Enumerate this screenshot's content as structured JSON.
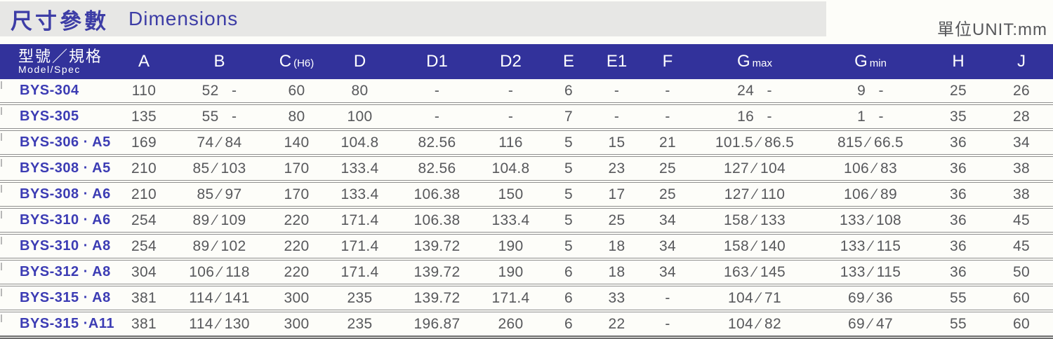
{
  "page": {
    "title_zh": "尺寸參數",
    "title_en": "Dimensions",
    "unit_label": "單位UNIT:mm"
  },
  "table": {
    "header": {
      "model_zh": "型號／規格",
      "model_en": "Model/Spec"
    },
    "columns": [
      {
        "key": "a",
        "main": "A",
        "sub": ""
      },
      {
        "key": "b",
        "main": "B",
        "sub": ""
      },
      {
        "key": "c",
        "main": "C",
        "sub": "(H6)"
      },
      {
        "key": "d",
        "main": "D",
        "sub": ""
      },
      {
        "key": "d1",
        "main": "D1",
        "sub": ""
      },
      {
        "key": "d2",
        "main": "D2",
        "sub": ""
      },
      {
        "key": "e",
        "main": "E",
        "sub": ""
      },
      {
        "key": "e1",
        "main": "E1",
        "sub": ""
      },
      {
        "key": "f",
        "main": "F",
        "sub": ""
      },
      {
        "key": "gmax",
        "main": "G",
        "sub": "max"
      },
      {
        "key": "gmin",
        "main": "G",
        "sub": "min"
      },
      {
        "key": "h",
        "main": "H",
        "sub": ""
      },
      {
        "key": "j",
        "main": "J",
        "sub": ""
      }
    ],
    "rows": [
      {
        "model": "BYS-304",
        "a": "110",
        "b": "52   -",
        "c": "60",
        "d": "80",
        "d1": "-",
        "d2": "-",
        "e": "6",
        "e1": "-",
        "f": "-",
        "gmax": "24   -",
        "gmin": "9   -",
        "h": "25",
        "j": "26"
      },
      {
        "model": "BYS-305",
        "a": "135",
        "b": "55   -",
        "c": "80",
        "d": "100",
        "d1": "-",
        "d2": "-",
        "e": "7",
        "e1": "-",
        "f": "-",
        "gmax": "16   -",
        "gmin": "1   -",
        "h": "35",
        "j": "28"
      },
      {
        "model": "BYS-306 · A5",
        "a": "169",
        "b": "74 ⁄ 84",
        "c": "140",
        "d": "104.8",
        "d1": "82.56",
        "d2": "116",
        "e": "5",
        "e1": "15",
        "f": "21",
        "gmax": "101.5 ⁄ 86.5",
        "gmin": "815 ⁄ 66.5",
        "h": "36",
        "j": "34"
      },
      {
        "model": "BYS-308 · A5",
        "a": "210",
        "b": "85 ⁄ 103",
        "c": "170",
        "d": "133.4",
        "d1": "82.56",
        "d2": "104.8",
        "e": "5",
        "e1": "23",
        "f": "25",
        "gmax": "127 ⁄ 104",
        "gmin": "106 ⁄ 83",
        "h": "36",
        "j": "38"
      },
      {
        "model": "BYS-308 · A6",
        "a": "210",
        "b": "85 ⁄ 97",
        "c": "170",
        "d": "133.4",
        "d1": "106.38",
        "d2": "150",
        "e": "5",
        "e1": "17",
        "f": "25",
        "gmax": "127 ⁄ 110",
        "gmin": "106 ⁄ 89",
        "h": "36",
        "j": "38"
      },
      {
        "model": "BYS-310 · A6",
        "a": "254",
        "b": "89 ⁄ 109",
        "c": "220",
        "d": "171.4",
        "d1": "106.38",
        "d2": "133.4",
        "e": "5",
        "e1": "25",
        "f": "34",
        "gmax": "158 ⁄ 133",
        "gmin": "133 ⁄ 108",
        "h": "36",
        "j": "45"
      },
      {
        "model": "BYS-310 · A8",
        "a": "254",
        "b": "89 ⁄ 102",
        "c": "220",
        "d": "171.4",
        "d1": "139.72",
        "d2": "190",
        "e": "5",
        "e1": "18",
        "f": "34",
        "gmax": "158 ⁄ 140",
        "gmin": "133 ⁄ 115",
        "h": "36",
        "j": "45"
      },
      {
        "model": "BYS-312 · A8",
        "a": "304",
        "b": "106 ⁄ 118",
        "c": "220",
        "d": "171.4",
        "d1": "139.72",
        "d2": "190",
        "e": "6",
        "e1": "18",
        "f": "34",
        "gmax": "163 ⁄ 145",
        "gmin": "133 ⁄ 115",
        "h": "36",
        "j": "50"
      },
      {
        "model": "BYS-315 · A8",
        "a": "381",
        "b": "114 ⁄ 141",
        "c": "300",
        "d": "235",
        "d1": "139.72",
        "d2": "171.4",
        "e": "6",
        "e1": "33",
        "f": "-",
        "gmax": "104 ⁄ 71",
        "gmin": "69 ⁄ 36",
        "h": "55",
        "j": "60"
      },
      {
        "model": "BYS-315 ·A11",
        "a": "381",
        "b": "114 ⁄ 130",
        "c": "300",
        "d": "235",
        "d1": "196.87",
        "d2": "260",
        "e": "6",
        "e1": "22",
        "f": "-",
        "gmax": "104 ⁄ 82",
        "gmin": "69 ⁄ 47",
        "h": "55",
        "j": "60"
      }
    ]
  }
}
